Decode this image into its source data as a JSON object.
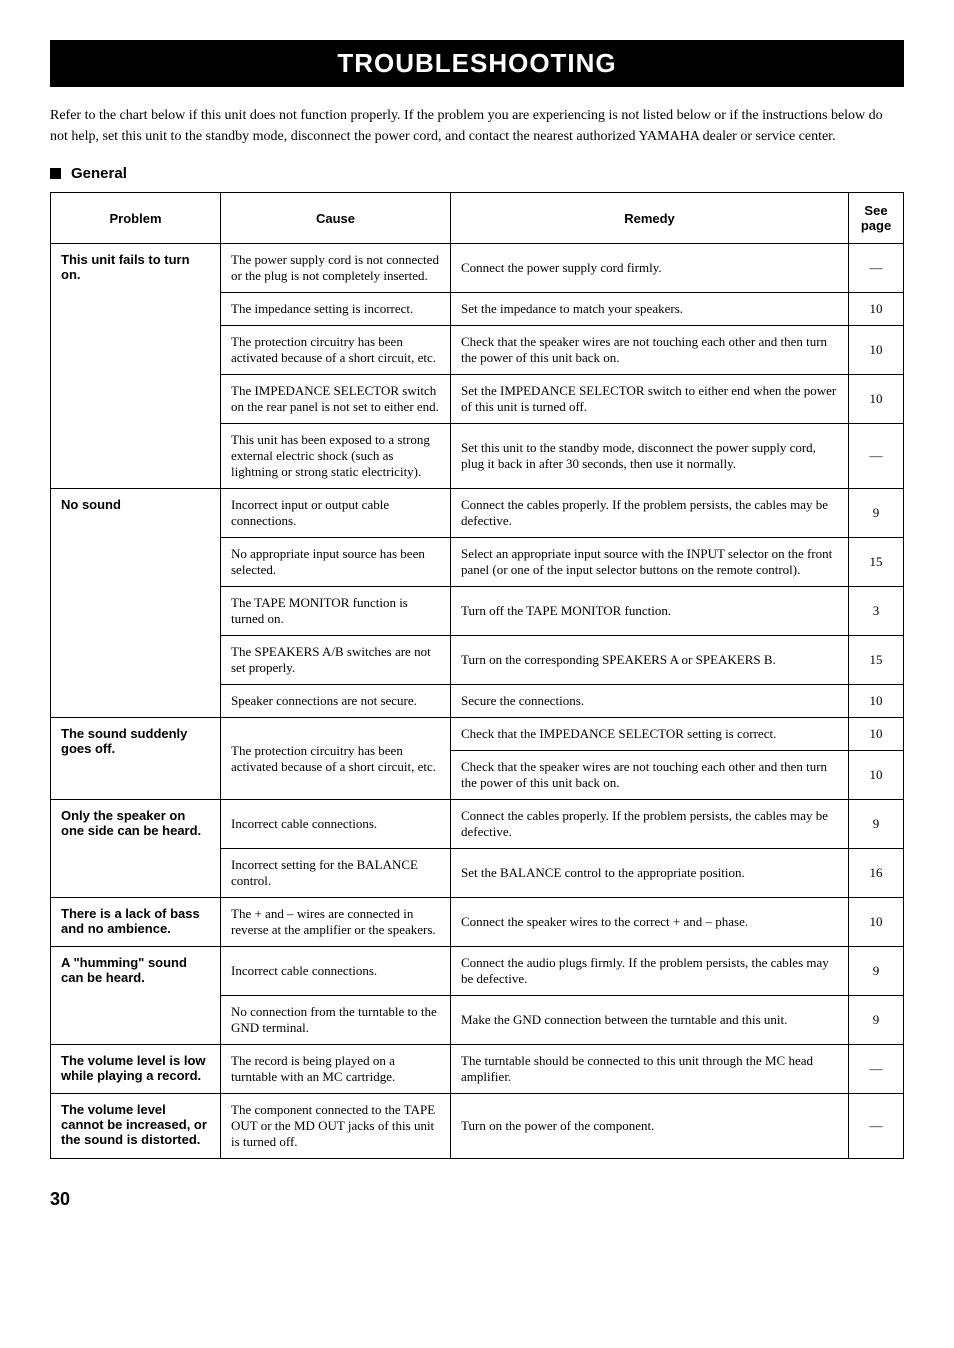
{
  "title": "TROUBLESHOOTING",
  "intro": "Refer to the chart below if this unit does not function properly. If the problem you are experiencing is not listed below or if the instructions below do not help, set this unit to the standby mode, disconnect the power cord, and contact the nearest authorized YAMAHA dealer or service center.",
  "section_label": "General",
  "headers": {
    "problem": "Problem",
    "cause": "Cause",
    "remedy": "Remedy",
    "page": "See page"
  },
  "rows": [
    {
      "problem": "This unit fails to turn on.",
      "cause": "The power supply cord is not connected or the plug is not completely inserted.",
      "remedy": "Connect the power supply cord firmly.",
      "page": "—",
      "problem_rowspan": 5
    },
    {
      "cause": "The impedance setting is incorrect.",
      "remedy": "Set the impedance to match your speakers.",
      "page": "10"
    },
    {
      "cause": "The protection circuitry has been activated because of a short circuit, etc.",
      "remedy": "Check that the speaker wires are not touching each other and then turn the power of this unit back on.",
      "page": "10"
    },
    {
      "cause": "The IMPEDANCE SELECTOR switch on the rear panel is not set to either end.",
      "remedy": "Set the IMPEDANCE SELECTOR switch to either end when the power of this unit is turned off.",
      "page": "10"
    },
    {
      "cause": "This unit has been exposed to a strong external electric shock (such as lightning or strong static electricity).",
      "remedy": "Set this unit to the standby mode, disconnect the power supply cord, plug it back in after 30 seconds, then use it normally.",
      "page": "—"
    },
    {
      "problem": "No sound",
      "cause": "Incorrect input or output cable connections.",
      "remedy": "Connect the cables properly. If the problem persists, the cables may be defective.",
      "page": "9",
      "problem_rowspan": 5
    },
    {
      "cause": "No appropriate input source has been selected.",
      "remedy": "Select an appropriate input source with the INPUT selector on the front panel (or one of the input selector buttons on the remote control).",
      "page": "15"
    },
    {
      "cause": "The TAPE MONITOR function is turned on.",
      "remedy": "Turn off the TAPE MONITOR function.",
      "page": "3"
    },
    {
      "cause": "The SPEAKERS A/B switches are not set properly.",
      "remedy": "Turn on the corresponding SPEAKERS A or SPEAKERS B.",
      "page": "15"
    },
    {
      "cause": "Speaker connections are not secure.",
      "remedy": "Secure the connections.",
      "page": "10"
    },
    {
      "problem": "The sound suddenly goes off.",
      "cause": "The protection circuitry has been activated because of a short circuit, etc.",
      "remedy": "Check that the IMPEDANCE SELECTOR setting is correct.",
      "page": "10",
      "problem_rowspan": 2,
      "cause_rowspan": 2
    },
    {
      "remedy": "Check that the speaker wires are not touching each other and then turn the power of this unit back on.",
      "page": "10"
    },
    {
      "problem": "Only the speaker on one side can be heard.",
      "cause": "Incorrect cable connections.",
      "remedy": "Connect the cables properly. If the problem persists, the cables may be defective.",
      "page": "9",
      "problem_rowspan": 2
    },
    {
      "cause": "Incorrect setting for the BALANCE control.",
      "remedy": "Set the BALANCE control to the appropriate position.",
      "page": "16"
    },
    {
      "problem": "There is a lack of bass and no ambience.",
      "cause": "The + and – wires are connected in reverse at the amplifier or the speakers.",
      "remedy": "Connect the speaker wires to the correct + and – phase.",
      "page": "10"
    },
    {
      "problem": "A \"humming\" sound can be heard.",
      "cause": "Incorrect cable connections.",
      "remedy": "Connect the audio plugs firmly. If the problem persists, the cables may be defective.",
      "page": "9",
      "problem_rowspan": 2
    },
    {
      "cause": "No connection from the turntable to the GND terminal.",
      "remedy": "Make the GND connection between the turntable and this unit.",
      "page": "9"
    },
    {
      "problem": "The volume level is low while playing a record.",
      "cause": "The record is being played on a turntable with an MC cartridge.",
      "remedy": "The turntable should be connected to this unit through the MC head amplifier.",
      "page": "—"
    },
    {
      "problem": "The volume level cannot be increased, or the sound is distorted.",
      "cause": "The component connected to the TAPE OUT or the MD OUT jacks of this unit is turned off.",
      "remedy": "Turn on the power of the component.",
      "page": "—"
    }
  ],
  "page_number": "30"
}
